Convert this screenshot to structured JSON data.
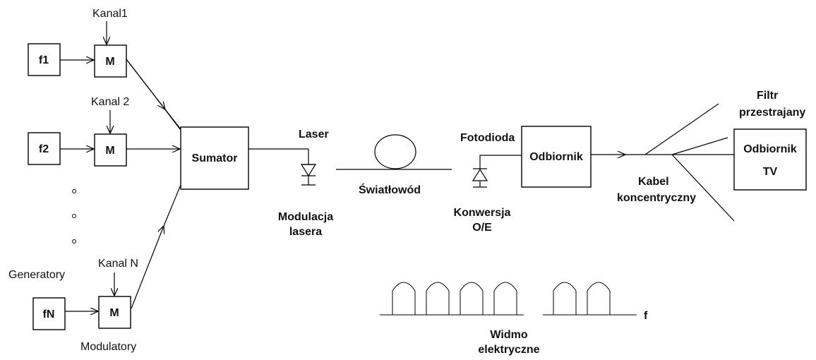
{
  "labels": {
    "channel_1": "Kanal1",
    "channel_2": "Kanal 2",
    "channel_n": "Kanal N",
    "generators": "Generatory",
    "modulators": "Modulatory",
    "laser": "Laser",
    "laser_modulation_line1": "Modulacja",
    "laser_modulation_line2": "lasera",
    "fiber": "Światłowód",
    "photodiode": "Fotodioda",
    "oe_conversion_line1": "Konwersja",
    "oe_conversion_line2": "O/E",
    "coax_line1": "Kabel",
    "coax_line2": "koncentryczny",
    "filter_line1": "Filtr",
    "filter_line2": "przestrajany",
    "spectrum_line1": "Widmo",
    "spectrum_line2": "elektryczne",
    "frequency_axis": "f"
  },
  "blocks": {
    "gen_1": "f1",
    "gen_2": "f2",
    "gen_n": "fN",
    "mod_1": "M",
    "mod_2": "M",
    "mod_n": "M",
    "summator": "Sumator",
    "receiver": "Odbiornik",
    "tv_receiver_line1": "Odbiornik",
    "tv_receiver_line2": "TV"
  },
  "spectrum": {
    "group_1_carriers": 4,
    "group_2_carriers": 2
  }
}
